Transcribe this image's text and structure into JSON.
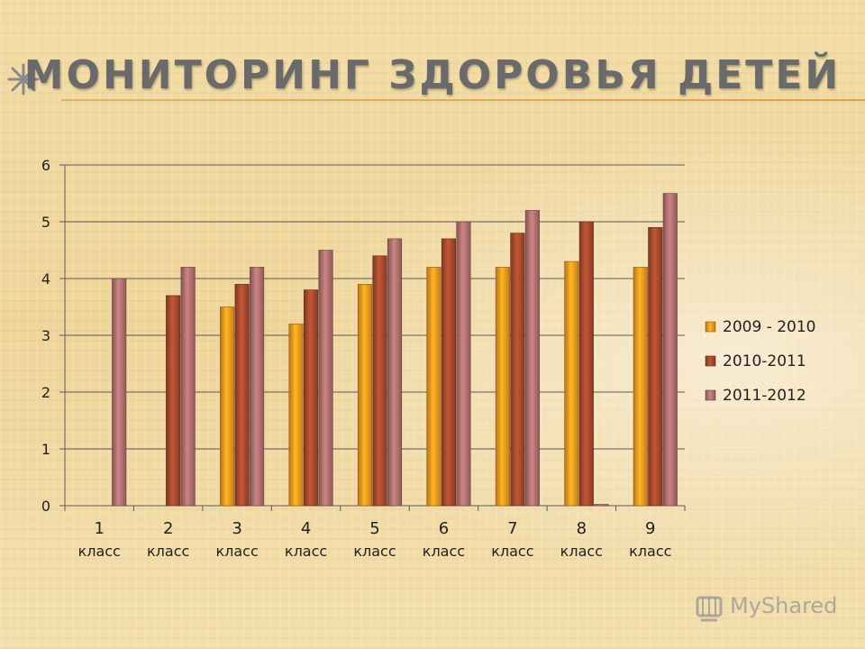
{
  "slide": {
    "title": "МОНИТОРИНГ  ЗДОРОВЬЯ ДЕТЕЙ",
    "watermark": "MyShared"
  },
  "chart_data": {
    "type": "bar",
    "categories": [
      "1 класс",
      "2 класс",
      "3 класс",
      "4 класс",
      "5 класс",
      "6 класс",
      "7 класс",
      "8 класс",
      "9 класс"
    ],
    "category_lines": [
      [
        "1",
        "класс"
      ],
      [
        "2",
        "класс"
      ],
      [
        "3",
        "класс"
      ],
      [
        "4",
        "класс"
      ],
      [
        "5",
        "класс"
      ],
      [
        "6",
        "класс"
      ],
      [
        "7",
        "класс"
      ],
      [
        "8",
        "класс"
      ],
      [
        "9",
        "класс"
      ]
    ],
    "series": [
      {
        "name": "2009 - 2010",
        "color": "#f59a1e",
        "values": [
          null,
          null,
          3.5,
          3.2,
          3.9,
          4.2,
          4.2,
          4.3,
          4.2
        ]
      },
      {
        "name": "2010-2011",
        "color": "#a64a2e",
        "values": [
          null,
          3.7,
          3.9,
          3.8,
          4.4,
          4.7,
          4.8,
          5.0,
          4.9
        ]
      },
      {
        "name": "2011-2012",
        "color": "#b07070",
        "values": [
          4.0,
          4.2,
          4.2,
          4.5,
          4.7,
          5.0,
          5.2,
          0.0,
          5.5
        ]
      }
    ],
    "y_ticks": [
      "0",
      "1",
      "2",
      "3",
      "4",
      "5",
      "6"
    ],
    "ylim": [
      0,
      6
    ],
    "grid": true,
    "legend_position": "right"
  }
}
